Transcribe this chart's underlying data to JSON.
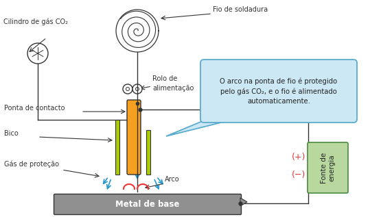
{
  "bg_color": "#ffffff",
  "label_cilindro": "Cilindro de gás CO₂",
  "label_fio": "Fio de soldadura",
  "label_rolo": "Rolo de\nalimentação",
  "label_ponta": "Ponta de contacto",
  "label_bico": "Bico",
  "label_gas": "Gás de proteção",
  "label_arco": "Arco",
  "label_metal": "Metal de base",
  "label_fonte": "Fonte de\nenergia",
  "label_plus": "(+)",
  "label_minus": "(−)",
  "bubble_text": "O arco na ponta de fio é protegido\npelo gás CO₂, e o fio é alimentado\nautomaticamente.",
  "bubble_bg": "#cce8f4",
  "bubble_border": "#5aabcd",
  "fonte_bg": "#b8d8a0",
  "fonte_border": "#4a8a40",
  "metal_color": "#909090",
  "orange_color": "#f5a020",
  "yellow_green": "#aacc00",
  "arrow_blue": "#2299cc",
  "arc_red": "#ee3333",
  "lc": "#333333"
}
